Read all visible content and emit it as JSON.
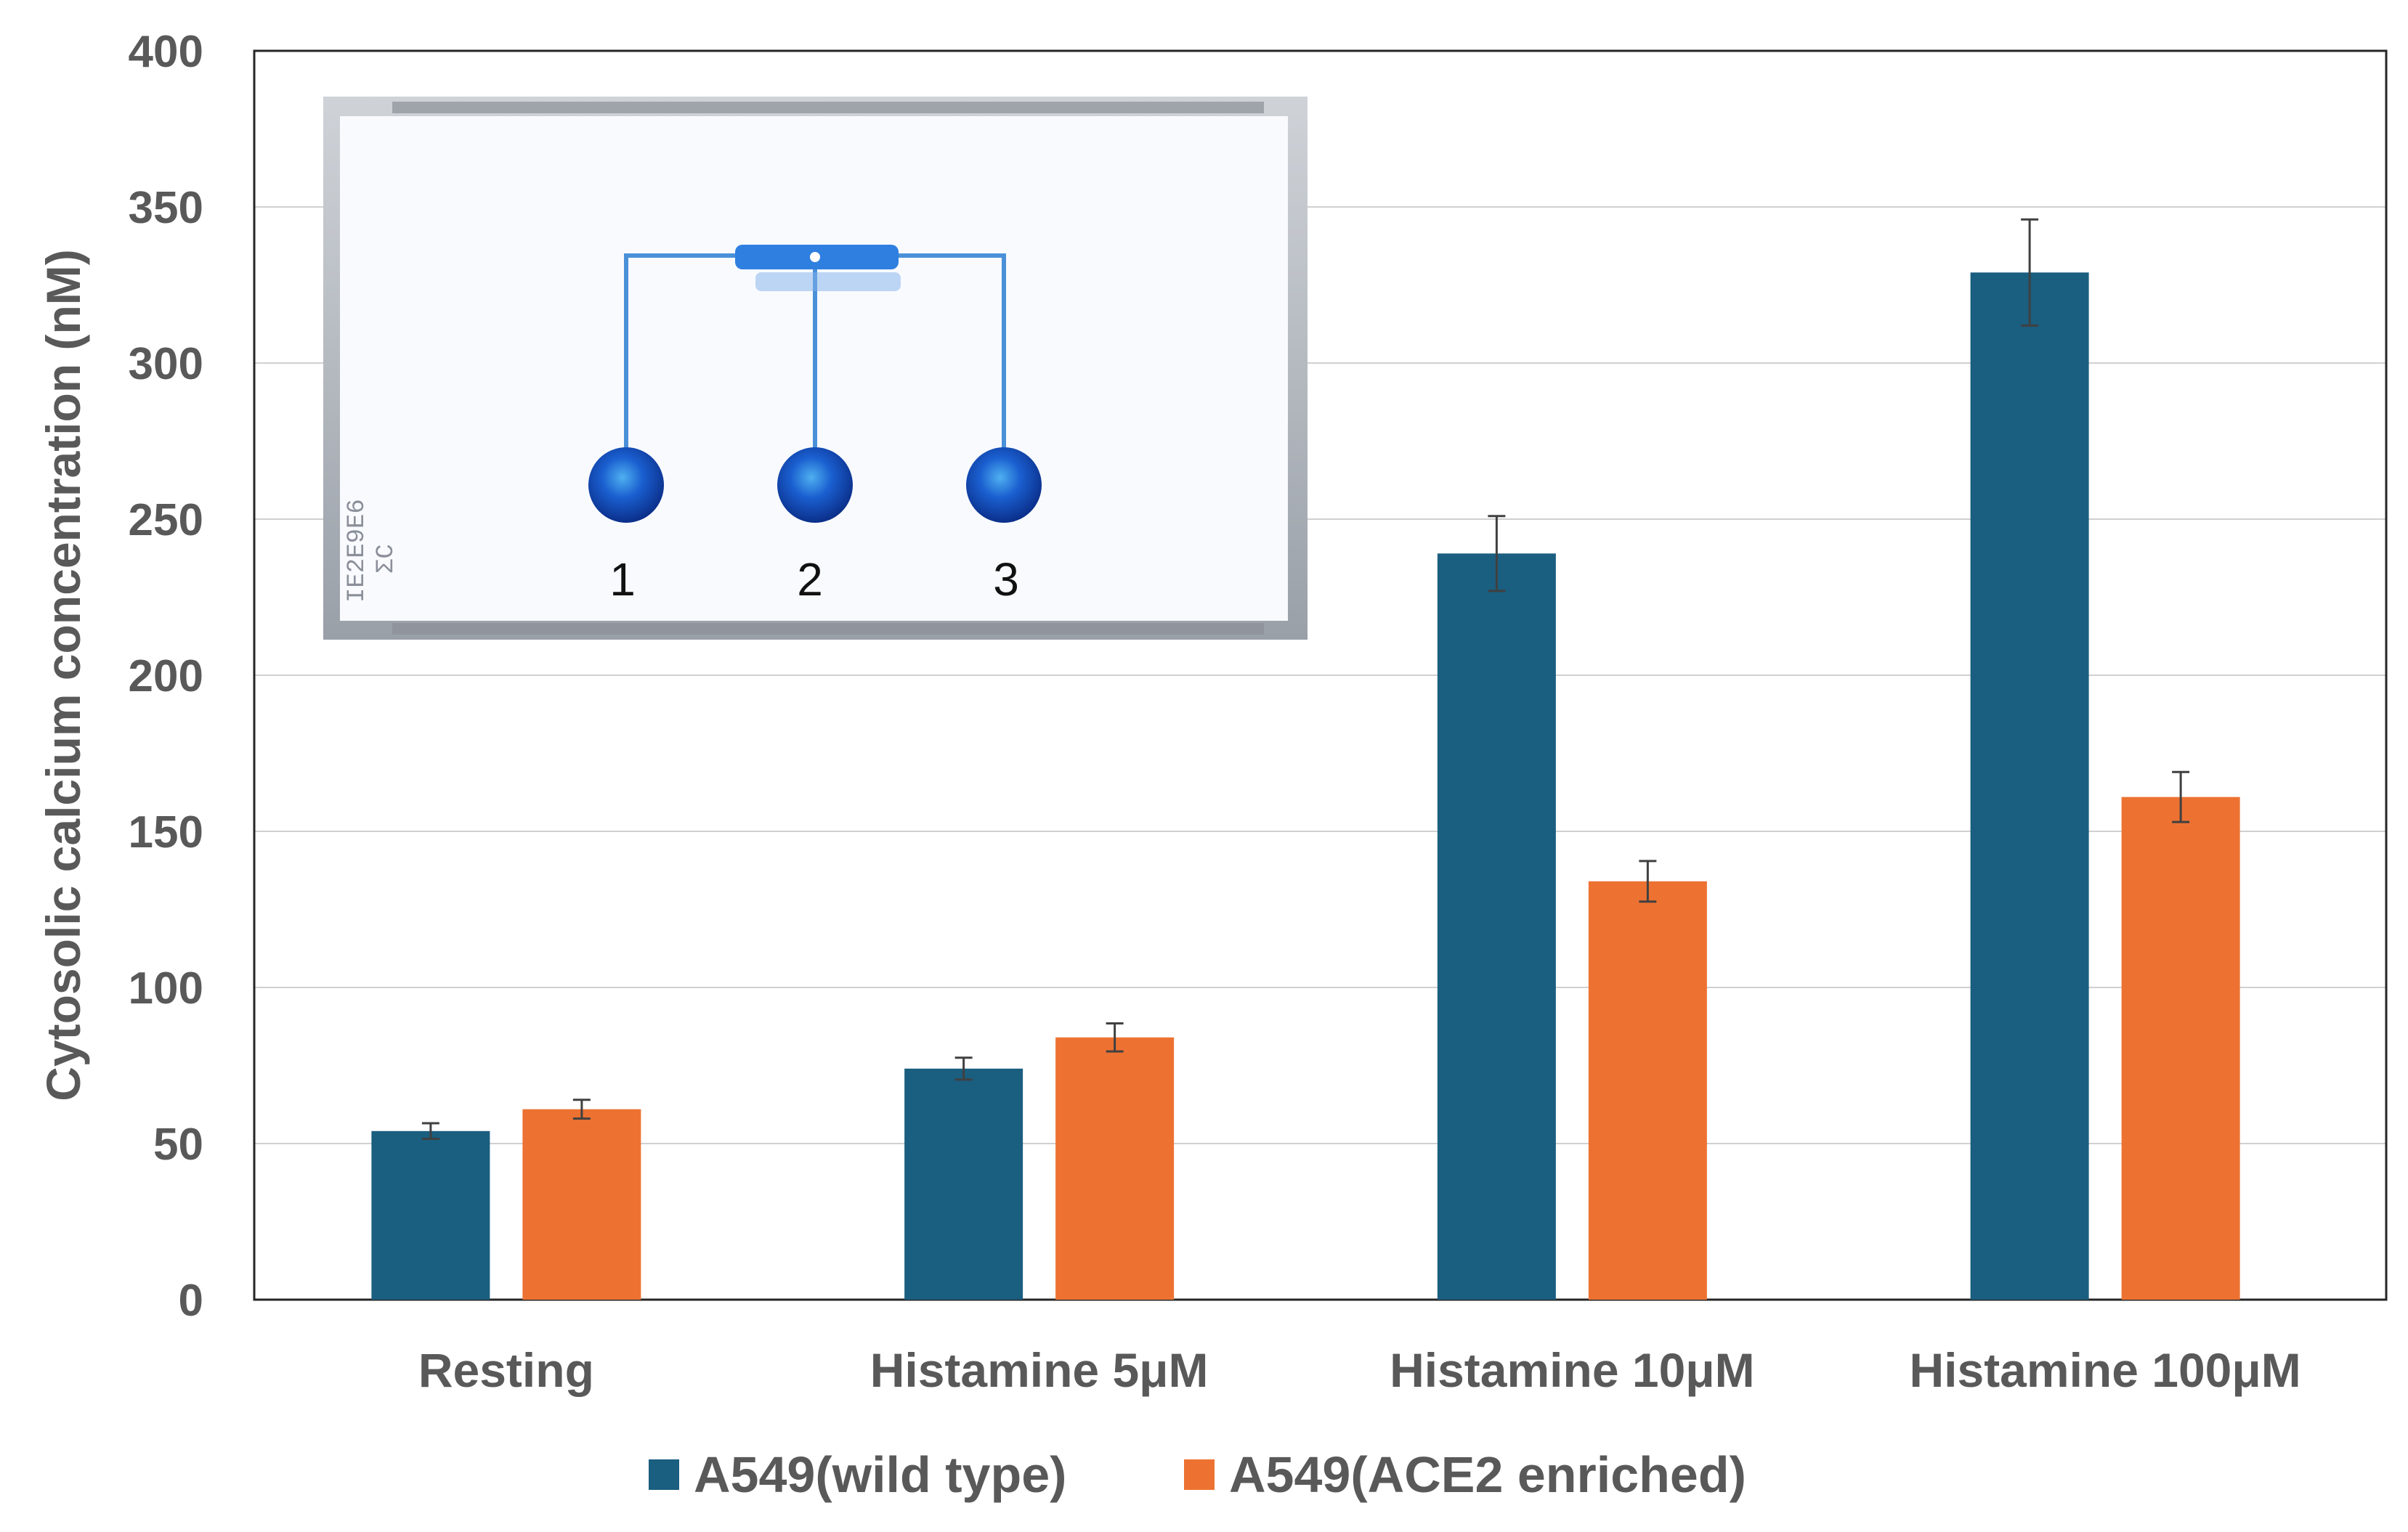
{
  "chart_data": {
    "type": "bar",
    "ylabel": "Cytosolic calcium concentration (nM)",
    "xlabel": "",
    "ylim": [
      0,
      400
    ],
    "yticks": [
      0,
      50,
      100,
      150,
      200,
      250,
      300,
      350,
      400
    ],
    "grid": true,
    "legend_position": "bottom",
    "categories": [
      "Resting",
      "Histamine 5μM",
      "Histamine 10μM",
      "Histamine 100μM"
    ],
    "series": [
      {
        "name": "A549(wild type)",
        "color": "#1a5e80",
        "values": [
          54,
          74,
          239,
          329
        ],
        "errors": [
          2.5,
          3.5,
          12,
          17
        ]
      },
      {
        "name": "A549(ACE2 enriched)",
        "color": "#ed7232",
        "values": [
          61,
          84,
          134,
          161
        ],
        "errors": [
          3,
          4.5,
          6.5,
          8
        ]
      }
    ]
  },
  "inset": {
    "description_icon": "microfluidic-chip-photo",
    "well_labels": [
      "1",
      "2",
      "3"
    ],
    "chip_code_lines": [
      "IE2E9E6",
      "ΣC"
    ]
  }
}
